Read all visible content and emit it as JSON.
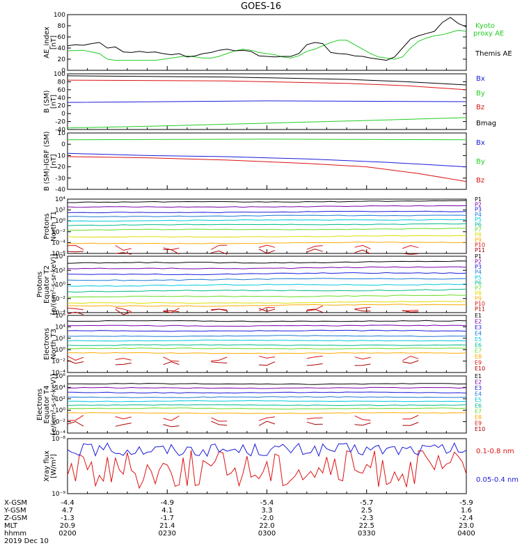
{
  "title": "GOES-16",
  "colors": {
    "black": "#000000",
    "green": "#22cc22",
    "blue": "#1a1adb",
    "red": "#dd1111",
    "cyan": "#00c8dc",
    "teal": "#00bb88",
    "lime": "#66dd22",
    "yellow": "#dddd00",
    "orange": "#ffaa00",
    "darkred": "#aa0000",
    "purple": "#7700aa",
    "navy": "#0000aa"
  },
  "chart_data": [
    {
      "type": "line",
      "id": "ae",
      "ylabel": [
        "AE_index",
        "[nT]"
      ],
      "ylim": [
        0,
        100
      ],
      "yticks": [
        0,
        20,
        40,
        60,
        80,
        100
      ],
      "series": [
        {
          "name": "Kyoto proxy AE",
          "color": "#22cc22",
          "x": [
            0,
            4,
            8,
            10,
            12,
            14,
            16,
            20,
            22,
            24,
            26,
            28,
            30,
            32,
            34,
            36,
            38,
            40,
            42,
            44,
            46,
            48,
            50,
            52,
            54,
            56,
            58,
            60,
            62,
            64,
            66,
            68,
            70,
            72,
            74,
            76,
            78,
            80,
            82,
            84,
            86,
            88,
            90,
            92,
            94,
            96,
            98,
            100
          ],
          "y": [
            35,
            36,
            30,
            20,
            18,
            18,
            18,
            18,
            18,
            20,
            22,
            24,
            26,
            24,
            22,
            22,
            25,
            30,
            35,
            38,
            36,
            32,
            30,
            28,
            24,
            22,
            26,
            34,
            38,
            44,
            50,
            54,
            54,
            46,
            38,
            30,
            24,
            22,
            20,
            24,
            40,
            52,
            58,
            62,
            64,
            68,
            72,
            70
          ]
        },
        {
          "name": "Themis AE",
          "color": "#000000",
          "x": [
            0,
            2,
            4,
            6,
            8,
            10,
            12,
            14,
            16,
            18,
            20,
            22,
            24,
            26,
            28,
            30,
            32,
            34,
            36,
            38,
            40,
            42,
            44,
            46,
            48,
            50,
            52,
            54,
            56,
            58,
            60,
            62,
            64,
            66,
            68,
            70,
            72,
            74,
            76,
            78,
            80,
            82,
            84,
            86,
            88,
            90,
            92,
            94,
            96,
            98,
            100
          ],
          "y": [
            44,
            46,
            45,
            48,
            50,
            40,
            42,
            33,
            32,
            34,
            32,
            33,
            30,
            28,
            30,
            24,
            26,
            30,
            32,
            36,
            38,
            35,
            36,
            34,
            26,
            25,
            24,
            25,
            25,
            30,
            46,
            50,
            48,
            32,
            30,
            29,
            26,
            25,
            22,
            20,
            18,
            24,
            40,
            56,
            62,
            66,
            70,
            86,
            95,
            84,
            78
          ]
        }
      ],
      "legend": [
        "Kyoto",
        "proxy AE",
        "Themis AE"
      ]
    },
    {
      "type": "line",
      "id": "bsm",
      "ylabel": [
        "B (SM)",
        "[nT]"
      ],
      "ylim": [
        -40,
        100
      ],
      "yticks": [
        -40,
        -20,
        0,
        20,
        40,
        60,
        80,
        100
      ],
      "series": [
        {
          "name": "Bx",
          "color": "#1a1adb",
          "x": [
            0,
            50,
            100
          ],
          "y": [
            28,
            32,
            30
          ]
        },
        {
          "name": "By",
          "color": "#22cc22",
          "x": [
            0,
            20,
            50,
            80,
            100
          ],
          "y": [
            -36,
            -32,
            -24,
            -16,
            -10
          ]
        },
        {
          "name": "Bz",
          "color": "#dd1111",
          "x": [
            0,
            40,
            70,
            85,
            100
          ],
          "y": [
            84,
            82,
            76,
            70,
            60
          ]
        },
        {
          "name": "Bmag",
          "color": "#000000",
          "x": [
            0,
            40,
            70,
            85,
            100
          ],
          "y": [
            95,
            92,
            86,
            80,
            72
          ]
        }
      ],
      "legend": [
        "Bx",
        "By",
        "Bz",
        "Bmag"
      ]
    },
    {
      "type": "line",
      "id": "digrf",
      "ylabel": [
        "B (SM)-IGRF (SM)",
        "[nT]"
      ],
      "ylim": [
        -40,
        10
      ],
      "yticks": [
        -40,
        -30,
        -20,
        -10,
        0,
        10
      ],
      "series": [
        {
          "name": "Bx",
          "color": "#1a1adb",
          "x": [
            0,
            20,
            40,
            60,
            80,
            100
          ],
          "y": [
            -8,
            -10,
            -11,
            -13,
            -16,
            -20
          ]
        },
        {
          "name": "By",
          "color": "#22cc22",
          "x": [
            0,
            50,
            100
          ],
          "y": [
            4,
            4.5,
            4
          ]
        },
        {
          "name": "Bz",
          "color": "#dd1111",
          "x": [
            0,
            20,
            40,
            60,
            75,
            88,
            100
          ],
          "y": [
            -11,
            -12,
            -14,
            -17,
            -20,
            -26,
            -33
          ]
        }
      ],
      "legend": [
        "Bx",
        "By",
        "Bz"
      ]
    },
    {
      "type": "line",
      "id": "pn",
      "log": true,
      "ylabel": [
        "Protons",
        "North T1"
      ],
      "ylim": [
        -6,
        4
      ],
      "yticks": [
        4,
        2,
        0,
        -2,
        -4,
        -6
      ],
      "series": [
        {
          "name": "P1",
          "color": "#000000",
          "y": 3.4
        },
        {
          "name": "P2",
          "color": "#7700aa",
          "y": 2.5
        },
        {
          "name": "P3",
          "color": "#1a1adb",
          "y": 1.5
        },
        {
          "name": "P4",
          "color": "#1a7ad4",
          "y": 0.8
        },
        {
          "name": "P5",
          "color": "#00c8dc",
          "y": 0.0
        },
        {
          "name": "P6",
          "color": "#00bb88",
          "y": -0.8
        },
        {
          "name": "P7",
          "color": "#66dd22",
          "y": -1.7
        },
        {
          "name": "P8",
          "color": "#dddd00",
          "y": -3.0
        },
        {
          "name": "P9",
          "color": "#ffaa00",
          "y": -4.2
        },
        {
          "name": "P10",
          "color": "#dd1111",
          "y": -5.0
        },
        {
          "name": "P11",
          "color": "#aa0000",
          "y": -5.8
        }
      ]
    },
    {
      "type": "line",
      "id": "pe",
      "log": true,
      "ylabel": [
        "Protons",
        "Equator T2",
        "[p/(cm²-s-sr-keV)]"
      ],
      "ylim": [
        -4,
        4
      ],
      "yticks": [
        4,
        2,
        0,
        -2,
        -4
      ],
      "series": [
        {
          "name": "P1",
          "color": "#000000",
          "y": 3.0
        },
        {
          "name": "P2",
          "color": "#7700aa",
          "y": 2.2
        },
        {
          "name": "P3",
          "color": "#1a1adb",
          "y": 1.4
        },
        {
          "name": "P4",
          "color": "#1a7ad4",
          "y": 0.6
        },
        {
          "name": "P5",
          "color": "#00c8dc",
          "y": -0.2
        },
        {
          "name": "P6",
          "color": "#00bb88",
          "y": -1.0
        },
        {
          "name": "P7",
          "color": "#66dd22",
          "y": -1.8
        },
        {
          "name": "P8",
          "color": "#dddd00",
          "y": -2.7
        },
        {
          "name": "P9",
          "color": "#ffaa00",
          "y": -3.1
        },
        {
          "name": "P10",
          "color": "#dd1111",
          "y": -3.6
        },
        {
          "name": "P11",
          "color": "#aa0000",
          "y": -3.9
        }
      ]
    },
    {
      "type": "line",
      "id": "en",
      "log": true,
      "ylabel": [
        "Electrons",
        "North T3"
      ],
      "ylim": [
        -4,
        6
      ],
      "yticks": [
        6,
        4,
        2,
        0,
        -2,
        -4
      ],
      "series": [
        {
          "name": "E1",
          "color": "#000000",
          "y": 5.0
        },
        {
          "name": "E2",
          "color": "#7700aa",
          "y": 4.2
        },
        {
          "name": "E3",
          "color": "#1a1adb",
          "y": 3.3
        },
        {
          "name": "E4",
          "color": "#1a7ad4",
          "y": 2.4
        },
        {
          "name": "E5",
          "color": "#00c8dc",
          "y": 1.6
        },
        {
          "name": "E6",
          "color": "#00bb88",
          "y": 0.8
        },
        {
          "name": "E7",
          "color": "#66dd22",
          "y": 0.2
        },
        {
          "name": "E8",
          "color": "#ffaa00",
          "y": -0.6
        },
        {
          "name": "E9",
          "color": "#dd1111",
          "y": -1.6
        },
        {
          "name": "E10",
          "color": "#aa0000",
          "y": -2.4
        }
      ]
    },
    {
      "type": "line",
      "id": "ee",
      "log": true,
      "ylabel": [
        "Electrons",
        "Equator T4",
        "[e/(cm²-s-sr-keV)]"
      ],
      "ylim": [
        -4,
        6
      ],
      "yticks": [
        6,
        4,
        2,
        0,
        -2,
        -4
      ],
      "series": [
        {
          "name": "E1",
          "color": "#000000",
          "y": 4.6
        },
        {
          "name": "E2",
          "color": "#7700aa",
          "y": 3.9
        },
        {
          "name": "E3",
          "color": "#1a1adb",
          "y": 3.1
        },
        {
          "name": "E4",
          "color": "#1a7ad4",
          "y": 2.3
        },
        {
          "name": "E5",
          "color": "#00c8dc",
          "y": 1.6
        },
        {
          "name": "E6",
          "color": "#00bb88",
          "y": 0.9
        },
        {
          "name": "E7",
          "color": "#66dd22",
          "y": 0.3
        },
        {
          "name": "E8",
          "color": "#ffaa00",
          "y": -0.5
        },
        {
          "name": "E9",
          "color": "#dd1111",
          "y": -1.4
        },
        {
          "name": "E10",
          "color": "#aa0000",
          "y": -2.4
        }
      ]
    },
    {
      "type": "line",
      "id": "xray",
      "log": true,
      "ylabel": [
        "Xray flux",
        "[W/m²]"
      ],
      "ylim": [
        -9,
        -8
      ],
      "yticks": [
        -8,
        -9
      ],
      "series": [
        {
          "name": "0.1-0.8 nm",
          "color": "#dd1111",
          "y": -8.55
        },
        {
          "name": "0.05-0.4 nm",
          "color": "#1a1adb",
          "y": -8.2
        }
      ]
    }
  ],
  "xaxis": {
    "rows": [
      {
        "label": "X-GSM",
        "values": [
          "-4.4",
          "-4.9",
          "-5.4",
          "-5.7",
          "-5.9"
        ]
      },
      {
        "label": "Y-GSM",
        "values": [
          "4.7",
          "4.1",
          "3.3",
          "2.5",
          "1.6"
        ]
      },
      {
        "label": "Z-GSM",
        "values": [
          "-1.3",
          "-1.7",
          "-2.0",
          "-2.3",
          "-2.4"
        ]
      },
      {
        "label": "MLT",
        "values": [
          "20.9",
          "21.4",
          "22.0",
          "22.5",
          "23.0"
        ]
      },
      {
        "label": "hhmm",
        "values": [
          "0200",
          "0230",
          "0300",
          "0330",
          "0400"
        ]
      }
    ],
    "date": "2019 Dec 10"
  }
}
